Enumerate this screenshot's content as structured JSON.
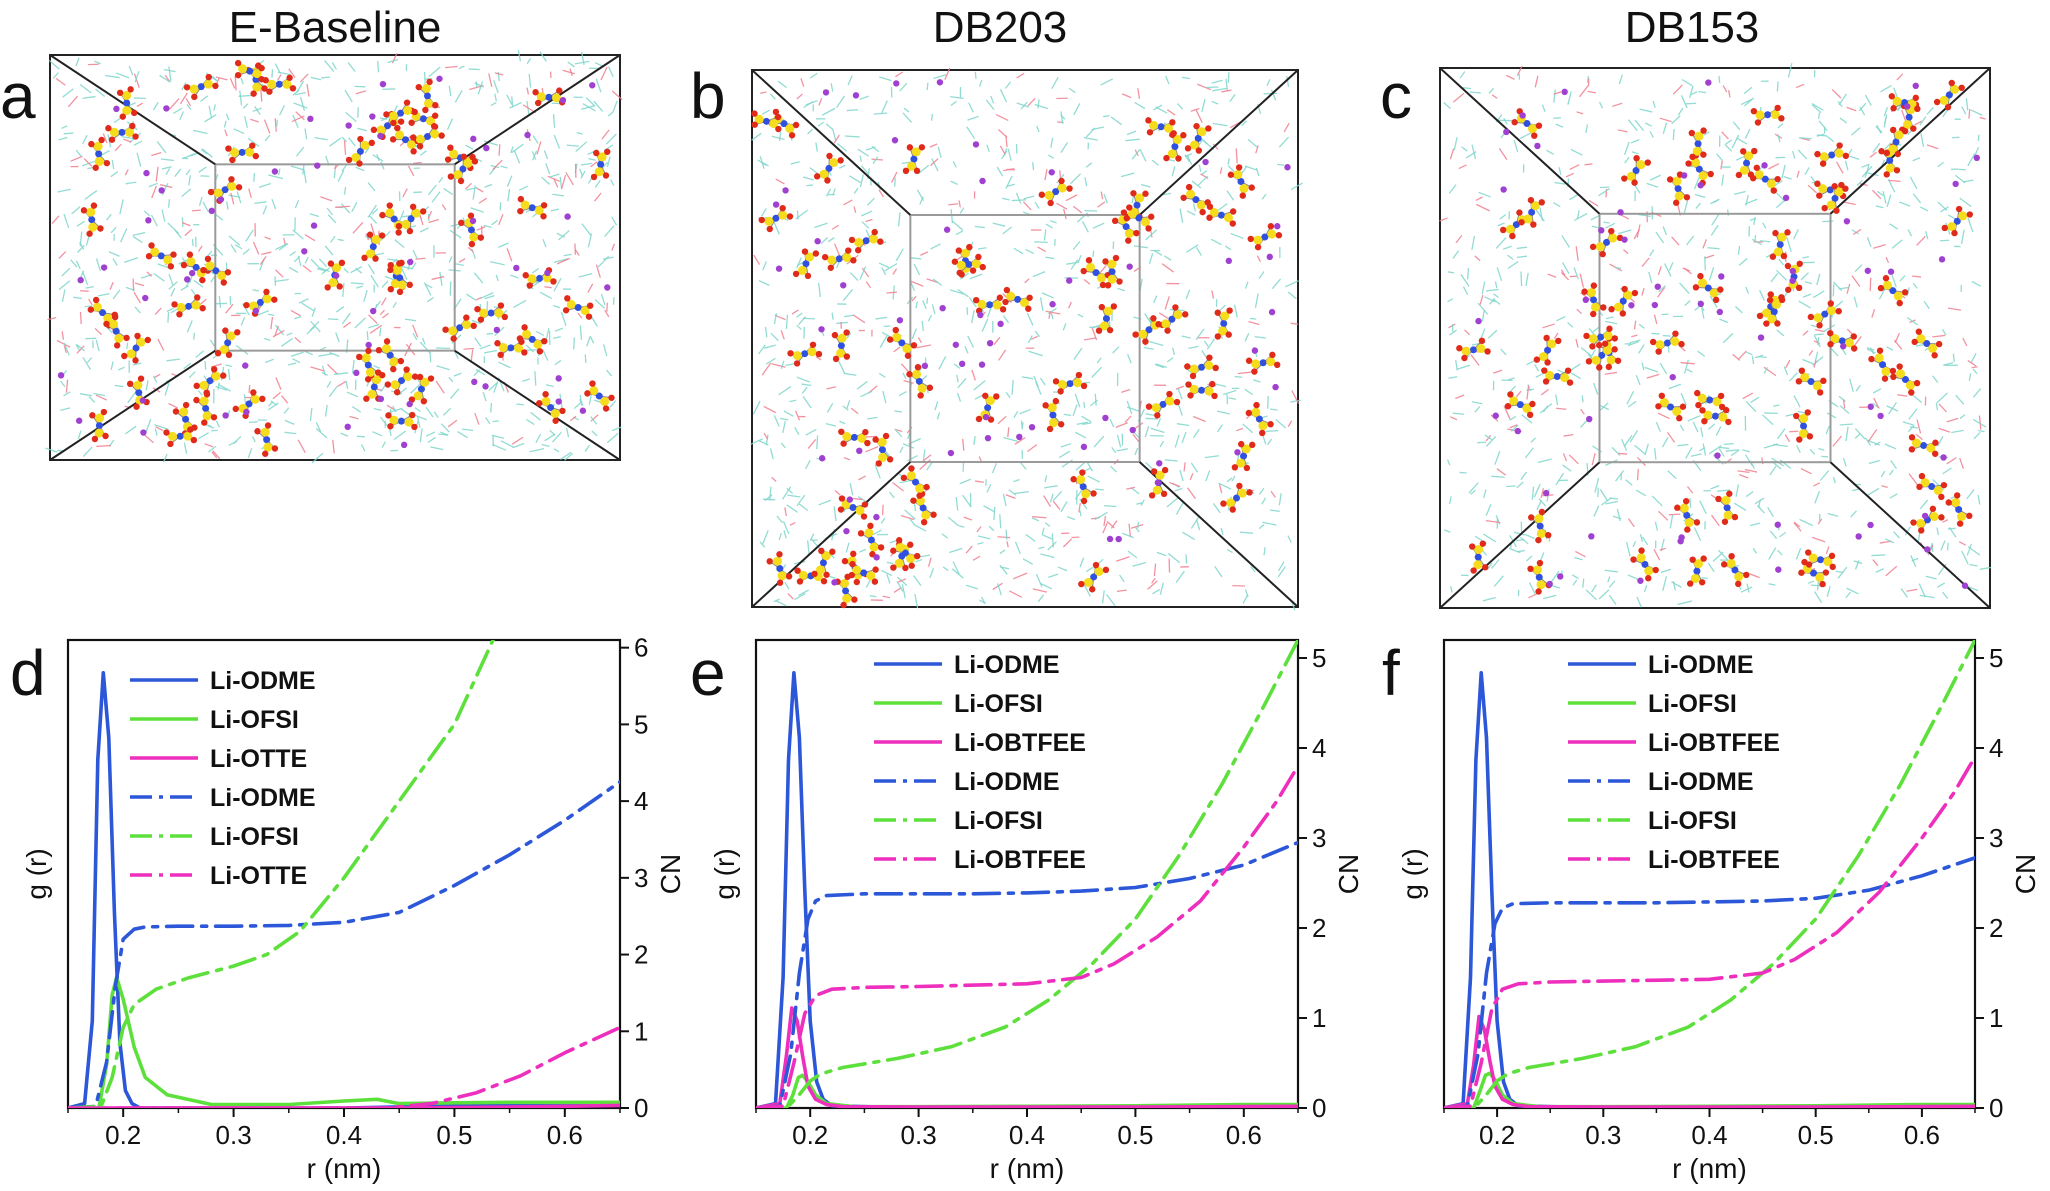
{
  "column_titles": [
    "E-Baseline",
    "DB203",
    "DB153"
  ],
  "panel_letters": [
    "a",
    "b",
    "c",
    "d",
    "e",
    "f"
  ],
  "colors": {
    "ODME": "#2b57d8",
    "OFSI": "#5ee03c",
    "OTTE": "#ee2fbd",
    "FSI_atom_S": "#f5dc1c",
    "FSI_atom_O": "#e02a1a",
    "FSI_atom_N": "#3050e0",
    "Li_atom": "#a040d0",
    "solvent_C": "#7fd6cc",
    "solvent_O": "#f08090"
  },
  "chart_data": [
    {
      "type": "line",
      "panel": "d",
      "xlabel": "r (nm)",
      "ylabel_left": "g (r)",
      "ylabel_right": "CN",
      "xlim": [
        0.15,
        0.65
      ],
      "xticks": [
        "0.2",
        "0.3",
        "0.4",
        "0.5",
        "0.6"
      ],
      "right_ylim": [
        0,
        6.1
      ],
      "right_yticks": [
        "0",
        "1",
        "2",
        "3",
        "4",
        "5",
        "6"
      ],
      "legend_placement": "top-center",
      "series": [
        {
          "name": "Li-ODME",
          "axis": "left",
          "style": "solid",
          "color_key": "ODME",
          "x": [
            0.15,
            0.165,
            0.172,
            0.177,
            0.182,
            0.187,
            0.192,
            0.197,
            0.202,
            0.208,
            0.215,
            0.23,
            0.3,
            0.4,
            0.5,
            0.65
          ],
          "y": [
            0,
            0.01,
            0.2,
            0.8,
            1.0,
            0.85,
            0.45,
            0.15,
            0.04,
            0.01,
            0,
            0,
            0,
            0,
            0.005,
            0.01
          ]
        },
        {
          "name": "Li-OFSI",
          "axis": "left",
          "style": "solid",
          "color_key": "OFSI",
          "x": [
            0.15,
            0.178,
            0.185,
            0.19,
            0.194,
            0.2,
            0.21,
            0.22,
            0.24,
            0.28,
            0.35,
            0.4,
            0.43,
            0.45,
            0.5,
            0.55,
            0.65
          ],
          "y": [
            0,
            0,
            0.1,
            0.26,
            0.3,
            0.25,
            0.14,
            0.07,
            0.03,
            0.008,
            0.008,
            0.016,
            0.02,
            0.01,
            0.012,
            0.013,
            0.013
          ]
        },
        {
          "name": "Li-OTTE",
          "axis": "left",
          "style": "solid",
          "color_key": "OTTE",
          "x": [
            0.15,
            0.45,
            0.5,
            0.55,
            0.6,
            0.65
          ],
          "y": [
            0,
            0,
            0.001,
            0.002,
            0.004,
            0.006
          ]
        },
        {
          "name": "Li-ODME",
          "axis": "right",
          "style": "dashdot",
          "color_key": "ODME",
          "x": [
            0.15,
            0.175,
            0.185,
            0.193,
            0.2,
            0.21,
            0.22,
            0.25,
            0.3,
            0.35,
            0.4,
            0.45,
            0.5,
            0.55,
            0.6,
            0.65
          ],
          "y": [
            0,
            0.02,
            0.6,
            1.6,
            2.2,
            2.33,
            2.36,
            2.37,
            2.37,
            2.38,
            2.42,
            2.55,
            2.9,
            3.3,
            3.75,
            4.25
          ]
        },
        {
          "name": "Li-OFSI",
          "axis": "right",
          "style": "dashdot",
          "color_key": "OFSI",
          "x": [
            0.15,
            0.18,
            0.19,
            0.2,
            0.21,
            0.23,
            0.26,
            0.3,
            0.33,
            0.36,
            0.4,
            0.43,
            0.46,
            0.5,
            0.535
          ],
          "y": [
            0,
            0.02,
            0.4,
            1.05,
            1.35,
            1.55,
            1.7,
            1.85,
            2.0,
            2.3,
            3.0,
            3.6,
            4.2,
            5.0,
            6.1
          ]
        },
        {
          "name": "Li-OTTE",
          "axis": "right",
          "style": "dashdot",
          "color_key": "OTTE",
          "x": [
            0.15,
            0.44,
            0.48,
            0.52,
            0.56,
            0.6,
            0.65
          ],
          "y": [
            0,
            0,
            0.06,
            0.2,
            0.42,
            0.72,
            1.05
          ]
        }
      ]
    },
    {
      "type": "line",
      "panel": "e",
      "xlabel": "r (nm)",
      "ylabel_left": "g (r)",
      "ylabel_right": "CN",
      "xlim": [
        0.15,
        0.65
      ],
      "xticks": [
        "0.2",
        "0.3",
        "0.4",
        "0.5",
        "0.6"
      ],
      "right_ylim": [
        0,
        5.2
      ],
      "right_yticks": [
        "0",
        "1",
        "2",
        "3",
        "4",
        "5"
      ],
      "legend_placement": "top-center",
      "series": [
        {
          "name": "Li-ODME",
          "axis": "left",
          "style": "solid",
          "color_key": "ODME",
          "x": [
            0.15,
            0.168,
            0.175,
            0.18,
            0.185,
            0.19,
            0.195,
            0.2,
            0.206,
            0.212,
            0.22,
            0.3,
            0.4,
            0.5,
            0.65
          ],
          "y": [
            0,
            0.01,
            0.3,
            0.8,
            1.0,
            0.85,
            0.5,
            0.2,
            0.06,
            0.02,
            0.005,
            0,
            0,
            0.003,
            0.005
          ]
        },
        {
          "name": "Li-OFSI",
          "axis": "left",
          "style": "solid",
          "color_key": "OFSI",
          "x": [
            0.15,
            0.178,
            0.184,
            0.189,
            0.193,
            0.198,
            0.205,
            0.215,
            0.24,
            0.3,
            0.4,
            0.5,
            0.6,
            0.65
          ],
          "y": [
            0,
            0,
            0.03,
            0.07,
            0.075,
            0.06,
            0.03,
            0.01,
            0.003,
            0.003,
            0.004,
            0.005,
            0.008,
            0.008
          ]
        },
        {
          "name": "Li-OBTFEE",
          "axis": "left",
          "style": "solid",
          "color_key": "OTTE",
          "x": [
            0.15,
            0.172,
            0.178,
            0.183,
            0.188,
            0.193,
            0.198,
            0.205,
            0.215,
            0.23,
            0.3,
            0.5,
            0.65
          ],
          "y": [
            0,
            0.01,
            0.12,
            0.23,
            0.2,
            0.12,
            0.05,
            0.02,
            0.008,
            0.003,
            0.002,
            0.002,
            0.004
          ]
        },
        {
          "name": "Li-ODME",
          "axis": "right",
          "style": "dashdot",
          "color_key": "ODME",
          "x": [
            0.15,
            0.172,
            0.182,
            0.19,
            0.198,
            0.205,
            0.215,
            0.25,
            0.3,
            0.35,
            0.4,
            0.45,
            0.5,
            0.55,
            0.6,
            0.65
          ],
          "y": [
            0,
            0.02,
            0.6,
            1.5,
            2.1,
            2.3,
            2.36,
            2.38,
            2.38,
            2.38,
            2.39,
            2.41,
            2.45,
            2.55,
            2.7,
            2.95
          ]
        },
        {
          "name": "Li-OFSI",
          "axis": "right",
          "style": "dashdot",
          "color_key": "OFSI",
          "x": [
            0.15,
            0.18,
            0.19,
            0.2,
            0.21,
            0.23,
            0.28,
            0.33,
            0.38,
            0.42,
            0.46,
            0.5,
            0.54,
            0.58,
            0.62,
            0.65
          ],
          "y": [
            0,
            0.02,
            0.15,
            0.3,
            0.38,
            0.45,
            0.55,
            0.68,
            0.9,
            1.2,
            1.6,
            2.1,
            2.8,
            3.6,
            4.5,
            5.2
          ]
        },
        {
          "name": "Li-OBTFEE",
          "axis": "right",
          "style": "dashdot",
          "color_key": "OTTE",
          "x": [
            0.15,
            0.175,
            0.185,
            0.195,
            0.205,
            0.22,
            0.25,
            0.3,
            0.4,
            0.45,
            0.48,
            0.52,
            0.56,
            0.6,
            0.63,
            0.65
          ],
          "y": [
            0,
            0.02,
            0.5,
            1.05,
            1.25,
            1.32,
            1.34,
            1.35,
            1.38,
            1.45,
            1.6,
            1.9,
            2.3,
            2.9,
            3.4,
            3.8
          ]
        }
      ]
    },
    {
      "type": "line",
      "panel": "f",
      "xlabel": "r (nm)",
      "ylabel_left": "g (r)",
      "ylabel_right": "CN",
      "xlim": [
        0.15,
        0.65
      ],
      "xticks": [
        "0.2",
        "0.3",
        "0.4",
        "0.5",
        "0.6"
      ],
      "right_ylim": [
        0,
        5.2
      ],
      "right_yticks": [
        "0",
        "1",
        "2",
        "3",
        "4",
        "5"
      ],
      "legend_placement": "top-center",
      "series": [
        {
          "name": "Li-ODME",
          "axis": "left",
          "style": "solid",
          "color_key": "ODME",
          "x": [
            0.15,
            0.168,
            0.175,
            0.18,
            0.185,
            0.19,
            0.195,
            0.2,
            0.206,
            0.212,
            0.22,
            0.3,
            0.4,
            0.5,
            0.65
          ],
          "y": [
            0,
            0.01,
            0.3,
            0.8,
            1.0,
            0.85,
            0.5,
            0.2,
            0.06,
            0.02,
            0.005,
            0,
            0,
            0.003,
            0.005
          ]
        },
        {
          "name": "Li-OFSI",
          "axis": "left",
          "style": "solid",
          "color_key": "OFSI",
          "x": [
            0.15,
            0.178,
            0.184,
            0.189,
            0.193,
            0.198,
            0.205,
            0.215,
            0.24,
            0.3,
            0.4,
            0.5,
            0.6,
            0.65
          ],
          "y": [
            0,
            0,
            0.04,
            0.075,
            0.08,
            0.065,
            0.03,
            0.01,
            0.003,
            0.003,
            0.004,
            0.005,
            0.008,
            0.008
          ]
        },
        {
          "name": "Li-OBTFEE",
          "axis": "left",
          "style": "solid",
          "color_key": "OTTE",
          "x": [
            0.15,
            0.172,
            0.178,
            0.183,
            0.188,
            0.193,
            0.198,
            0.205,
            0.215,
            0.23,
            0.3,
            0.5,
            0.65
          ],
          "y": [
            0,
            0.01,
            0.1,
            0.21,
            0.18,
            0.11,
            0.05,
            0.02,
            0.008,
            0.003,
            0.002,
            0.002,
            0.004
          ]
        },
        {
          "name": "Li-ODME",
          "axis": "right",
          "style": "dashdot",
          "color_key": "ODME",
          "x": [
            0.15,
            0.172,
            0.182,
            0.19,
            0.198,
            0.205,
            0.215,
            0.25,
            0.3,
            0.35,
            0.4,
            0.45,
            0.5,
            0.55,
            0.6,
            0.65
          ],
          "y": [
            0,
            0.02,
            0.6,
            1.5,
            2.05,
            2.22,
            2.27,
            2.28,
            2.28,
            2.28,
            2.29,
            2.3,
            2.33,
            2.42,
            2.58,
            2.78
          ]
        },
        {
          "name": "Li-OFSI",
          "axis": "right",
          "style": "dashdot",
          "color_key": "OFSI",
          "x": [
            0.15,
            0.18,
            0.19,
            0.2,
            0.21,
            0.23,
            0.28,
            0.33,
            0.38,
            0.42,
            0.46,
            0.5,
            0.54,
            0.58,
            0.62,
            0.65
          ],
          "y": [
            0,
            0.02,
            0.15,
            0.3,
            0.38,
            0.45,
            0.55,
            0.68,
            0.9,
            1.2,
            1.6,
            2.1,
            2.8,
            3.6,
            4.5,
            5.2
          ]
        },
        {
          "name": "Li-OBTFEE",
          "axis": "right",
          "style": "dashdot",
          "color_key": "OTTE",
          "x": [
            0.15,
            0.175,
            0.185,
            0.195,
            0.205,
            0.22,
            0.25,
            0.3,
            0.4,
            0.45,
            0.48,
            0.52,
            0.56,
            0.6,
            0.63,
            0.65
          ],
          "y": [
            0,
            0.02,
            0.5,
            1.1,
            1.32,
            1.38,
            1.4,
            1.41,
            1.43,
            1.5,
            1.65,
            1.95,
            2.4,
            3.0,
            3.5,
            3.9
          ]
        }
      ]
    }
  ]
}
